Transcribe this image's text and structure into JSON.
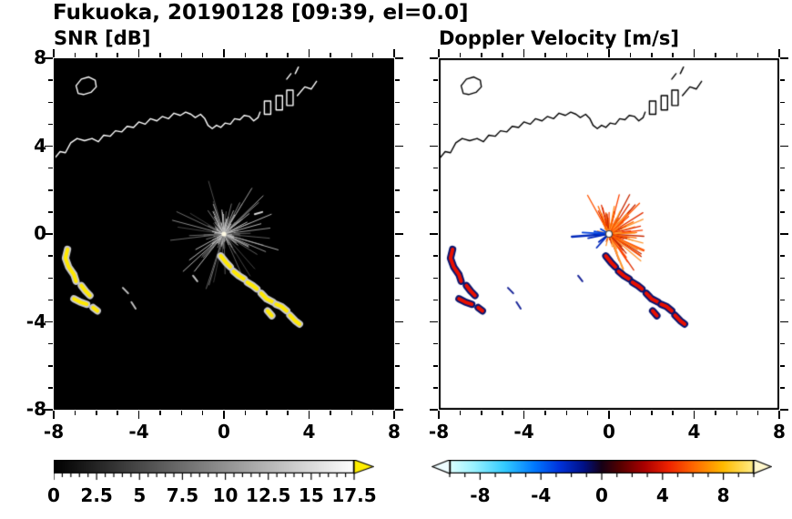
{
  "title": "Fukuoka, 20190128 [09:39, el=0.0]",
  "panels": {
    "snr": {
      "title": "SNR [dB]"
    },
    "vel": {
      "title": "Doppler Velocity [m/s]"
    }
  },
  "axes": {
    "xlim": [
      -8,
      8
    ],
    "ylim": [
      -8,
      8
    ],
    "major_step": 4,
    "minor_step": 1,
    "x_tick_labels": [
      "-8",
      "-4",
      "0",
      "4",
      "8"
    ],
    "y_tick_labels": [
      "-8",
      "-4",
      "0",
      "4",
      "8"
    ]
  },
  "colorbars": {
    "snr": {
      "min": 0,
      "max": 17.5,
      "minor_step": 0.5,
      "major_ticks": [
        0,
        2.5,
        5,
        7.5,
        10,
        12.5,
        15,
        17.5
      ],
      "labels": [
        "0",
        "2.5",
        "5",
        "7.5",
        "10",
        "12.5",
        "15",
        "17.5"
      ],
      "gradient": [
        "#000000",
        "#ffffff"
      ],
      "over_color": "#ffee00"
    },
    "vel": {
      "min": -10,
      "max": 10,
      "minor_step": 1,
      "major_ticks": [
        -8,
        -4,
        0,
        4,
        8
      ],
      "labels": [
        "-8",
        "-4",
        "0",
        "4",
        "8"
      ],
      "stops": [
        [
          0,
          "#ddffff"
        ],
        [
          0.08,
          "#99f2ff"
        ],
        [
          0.18,
          "#33ccff"
        ],
        [
          0.28,
          "#0077ff"
        ],
        [
          0.36,
          "#0033dd"
        ],
        [
          0.44,
          "#001188"
        ],
        [
          0.5,
          "#160016"
        ],
        [
          0.56,
          "#550000"
        ],
        [
          0.64,
          "#aa0000"
        ],
        [
          0.72,
          "#ee2200"
        ],
        [
          0.8,
          "#ff6600"
        ],
        [
          0.9,
          "#ffbb00"
        ],
        [
          1,
          "#ffee88"
        ]
      ],
      "under_color": "#eefcff",
      "over_color": "#fff7cc"
    }
  },
  "chart_data": [
    {
      "type": "heatmap",
      "title": "SNR [dB]",
      "xlabel": "",
      "ylabel": "",
      "xlim": [
        -8,
        8
      ],
      "ylim": [
        -8,
        8
      ],
      "x_ticks": [
        -8,
        -4,
        0,
        4,
        8
      ],
      "y_ticks": [
        -8,
        -4,
        0,
        4,
        8
      ],
      "background": "#000000",
      "colorbar": {
        "min": 0,
        "max": 17.5,
        "tick_labels": [
          "0",
          "2.5",
          "5",
          "7.5",
          "10",
          "12.5",
          "15",
          "17.5"
        ],
        "colormap": "grayscale black to white",
        "over_arrow_color": "#ffee00"
      },
      "content": {
        "radar_center": [
          0,
          0
        ],
        "clutter_fan": "gray radial speckle rays from radar at origin, radius up to ~2.4",
        "echo_core_color": "#ffe800",
        "echo_halo_color": "#c8c8c8",
        "coastline_color": "#ffffff"
      }
    },
    {
      "type": "heatmap",
      "title": "Doppler Velocity [m/s]",
      "xlabel": "",
      "ylabel": "",
      "xlim": [
        -8,
        8
      ],
      "ylim": [
        -8,
        8
      ],
      "x_ticks": [
        -8,
        -4,
        0,
        4,
        8
      ],
      "y_ticks": [
        -8,
        -4,
        0,
        4,
        8
      ],
      "background": "#ffffff",
      "colorbar": {
        "min": -10,
        "max": 10,
        "tick_labels": [
          "-8",
          "-4",
          "0",
          "4",
          "8"
        ],
        "colormap": "cyan-blue-darkblue-black-darkred-red-orange-yellow",
        "arrows": "both ends"
      },
      "content": {
        "radar_center": [
          0,
          0
        ],
        "outbound_fan": "orange/red radial rays mostly toward upper-right of radar",
        "inbound_spokes": "blue spokes pointing west / lower-left",
        "echo_core_color": "#e81000",
        "echo_edge_color": "#0a1670",
        "coastline_color": "#000000"
      }
    }
  ],
  "geometry": {
    "coast_lines": [
      [
        [
          -8.0,
          3.4
        ],
        [
          -7.7,
          3.75
        ],
        [
          -7.45,
          3.7
        ],
        [
          -7.2,
          4.15
        ],
        [
          -6.9,
          4.35
        ],
        [
          -6.55,
          4.25
        ],
        [
          -6.2,
          4.35
        ],
        [
          -5.9,
          4.2
        ],
        [
          -5.65,
          4.5
        ],
        [
          -5.35,
          4.45
        ],
        [
          -5.1,
          4.7
        ],
        [
          -4.8,
          4.65
        ],
        [
          -4.55,
          4.9
        ],
        [
          -4.25,
          4.85
        ],
        [
          -4.0,
          5.1
        ],
        [
          -3.7,
          5.0
        ],
        [
          -3.45,
          5.25
        ],
        [
          -3.15,
          5.15
        ],
        [
          -2.9,
          5.35
        ],
        [
          -2.6,
          5.25
        ],
        [
          -2.35,
          5.5
        ],
        [
          -2.05,
          5.4
        ],
        [
          -1.8,
          5.55
        ],
        [
          -1.55,
          5.45
        ],
        [
          -1.35,
          5.3
        ],
        [
          -1.1,
          5.45
        ],
        [
          -0.9,
          5.25
        ],
        [
          -0.75,
          4.95
        ],
        [
          -0.55,
          4.8
        ],
        [
          -0.35,
          4.95
        ],
        [
          -0.15,
          4.85
        ],
        [
          0.05,
          5.05
        ],
        [
          0.3,
          5.0
        ],
        [
          0.5,
          5.25
        ],
        [
          0.75,
          5.2
        ],
        [
          0.95,
          5.4
        ],
        [
          1.2,
          5.35
        ],
        [
          1.4,
          5.15
        ],
        [
          1.6,
          5.3
        ],
        [
          1.7,
          5.55
        ]
      ],
      [
        [
          3.45,
          6.3
        ],
        [
          3.8,
          6.7
        ],
        [
          4.1,
          6.6
        ],
        [
          4.35,
          6.95
        ]
      ],
      [
        [
          2.95,
          7.05
        ],
        [
          3.15,
          7.3
        ]
      ],
      [
        [
          3.35,
          7.3
        ],
        [
          3.5,
          7.6
        ]
      ]
    ],
    "coast_closed": [
      [
        [
          -6.85,
          6.4
        ],
        [
          -6.95,
          6.75
        ],
        [
          -6.7,
          7.05
        ],
        [
          -6.35,
          7.15
        ],
        [
          -6.05,
          7.0
        ],
        [
          -6.0,
          6.7
        ],
        [
          -6.25,
          6.45
        ],
        [
          -6.6,
          6.35
        ]
      ],
      [
        [
          1.9,
          5.45
        ],
        [
          1.9,
          6.05
        ],
        [
          2.2,
          6.05
        ],
        [
          2.2,
          5.45
        ]
      ],
      [
        [
          2.45,
          5.65
        ],
        [
          2.45,
          6.3
        ],
        [
          2.75,
          6.3
        ],
        [
          2.75,
          5.65
        ]
      ],
      [
        [
          2.95,
          5.85
        ],
        [
          2.95,
          6.55
        ],
        [
          3.25,
          6.55
        ],
        [
          3.25,
          5.85
        ]
      ]
    ],
    "echo_segments": [
      [
        [
          -7.35,
          -0.7
        ],
        [
          -7.45,
          -1.1
        ],
        [
          -7.3,
          -1.5
        ],
        [
          -7.05,
          -1.85
        ],
        [
          -6.95,
          -2.15
        ]
      ],
      [
        [
          -6.7,
          -2.35
        ],
        [
          -6.5,
          -2.6
        ],
        [
          -6.3,
          -2.8
        ]
      ],
      [
        [
          -7.05,
          -2.95
        ],
        [
          -6.75,
          -3.1
        ],
        [
          -6.45,
          -3.2
        ]
      ],
      [
        [
          -6.15,
          -3.35
        ],
        [
          -5.95,
          -3.5
        ]
      ],
      [
        [
          -0.15,
          -1.0
        ],
        [
          0.1,
          -1.3
        ],
        [
          0.3,
          -1.5
        ]
      ],
      [
        [
          0.45,
          -1.7
        ],
        [
          0.7,
          -1.9
        ],
        [
          0.95,
          -2.05
        ]
      ],
      [
        [
          1.1,
          -2.2
        ],
        [
          1.35,
          -2.35
        ],
        [
          1.55,
          -2.5
        ]
      ],
      [
        [
          1.75,
          -2.7
        ],
        [
          2.0,
          -2.95
        ],
        [
          2.3,
          -3.1
        ]
      ],
      [
        [
          2.45,
          -3.2
        ],
        [
          2.7,
          -3.3
        ],
        [
          2.95,
          -3.5
        ]
      ],
      [
        [
          3.1,
          -3.7
        ],
        [
          3.35,
          -3.95
        ],
        [
          3.55,
          -4.1
        ]
      ],
      [
        [
          2.05,
          -3.5
        ],
        [
          2.25,
          -3.72
        ]
      ]
    ],
    "minor_echoes": [
      [
        [
          -4.75,
          -2.45
        ],
        [
          -4.5,
          -2.7
        ]
      ],
      [
        [
          -4.35,
          -3.1
        ],
        [
          -4.15,
          -3.4
        ]
      ],
      [
        [
          -1.45,
          -1.9
        ],
        [
          -1.25,
          -2.15
        ]
      ]
    ],
    "snr_rays": [
      [
        22,
        2.4
      ],
      [
        15,
        1.8
      ],
      [
        38,
        1.5
      ],
      [
        208,
        1.5
      ],
      [
        95,
        1.1
      ],
      [
        120,
        0.9
      ],
      [
        333,
        1.3
      ],
      [
        60,
        1.0
      ],
      [
        75,
        0.8
      ]
    ],
    "blue_spokes": [
      [
        184,
        1.75
      ],
      [
        177,
        1.25
      ],
      [
        191,
        1.0
      ],
      [
        170,
        0.7
      ],
      [
        217,
        0.6
      ],
      [
        150,
        0.45
      ],
      [
        227,
        0.85
      ]
    ],
    "radar_center": [
      0,
      0
    ]
  }
}
